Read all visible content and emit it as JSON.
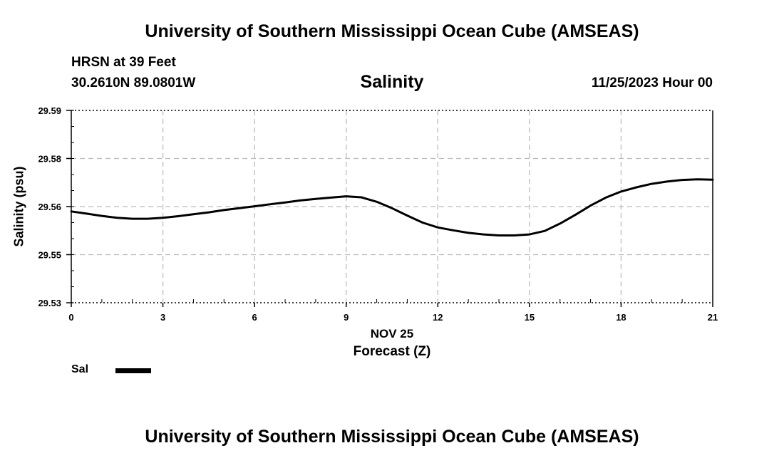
{
  "header": {
    "title": "University of Southern Mississippi Ocean Cube (AMSEAS)",
    "station": "HRSN at 39 Feet",
    "coordinates": "30.2610N  89.0801W",
    "valid_time": "11/25/2023 Hour 00"
  },
  "footer": {
    "title": "University of Southern Mississippi Ocean Cube (AMSEAS)"
  },
  "colors": {
    "line": "#000000",
    "grid": "#bbbbbb",
    "axis": "#000000"
  },
  "chart_data": {
    "type": "line",
    "title": "Salinity",
    "xlabel": "Forecast (Z)",
    "xlabel_date": "NOV 25",
    "ylabel": "Salinity (psu)",
    "xlim": [
      0,
      21
    ],
    "ylim": [
      29.53,
      29.59
    ],
    "x_ticks": [
      0,
      3,
      6,
      9,
      12,
      15,
      18,
      21
    ],
    "x_tick_labels": [
      "0",
      "3",
      "6",
      "9",
      "12",
      "15",
      "18",
      "21"
    ],
    "y_ticks": [
      29.53,
      29.545,
      29.56,
      29.575,
      29.59
    ],
    "y_tick_labels": [
      "29.53",
      "29.55",
      "29.56",
      "29.58",
      "29.59"
    ],
    "grid": true,
    "legend": [
      {
        "label": "Sal",
        "placement": "bottom-left"
      }
    ],
    "series": [
      {
        "name": "Sal",
        "x": [
          0,
          0.5,
          1,
          1.5,
          2,
          2.5,
          3,
          3.5,
          4,
          4.5,
          5,
          5.5,
          6,
          6.5,
          7,
          7.5,
          8,
          8.5,
          9,
          9.5,
          10,
          10.5,
          11,
          11.5,
          12,
          12.5,
          13,
          13.5,
          14,
          14.5,
          15,
          15.5,
          16,
          16.5,
          17,
          17.5,
          18,
          18.5,
          19,
          19.5,
          20,
          20.5,
          21
        ],
        "values": [
          29.5585,
          29.5578,
          29.5571,
          29.5565,
          29.5562,
          29.5562,
          29.5565,
          29.557,
          29.5576,
          29.5582,
          29.5589,
          29.5595,
          29.5601,
          29.5607,
          29.5613,
          29.5619,
          29.5624,
          29.5628,
          29.5632,
          29.5629,
          29.5615,
          29.5595,
          29.5572,
          29.555,
          29.5535,
          29.5526,
          29.5518,
          29.5513,
          29.551,
          29.551,
          29.5513,
          29.5524,
          29.5547,
          29.5574,
          29.5603,
          29.5628,
          29.5647,
          29.566,
          29.5671,
          29.5678,
          29.5683,
          29.5685,
          29.5684
        ]
      }
    ]
  }
}
